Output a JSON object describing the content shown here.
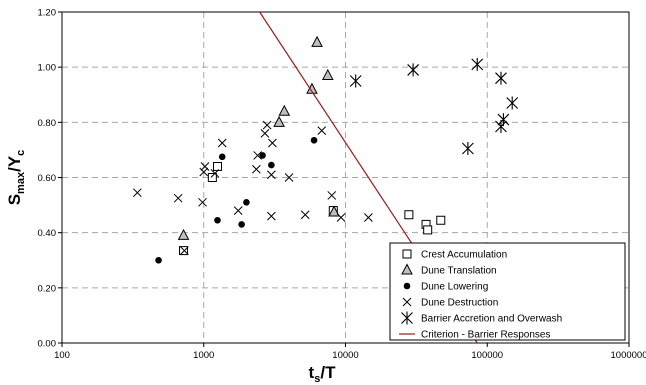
{
  "chart_data": {
    "type": "scatter",
    "xscale": "log",
    "xlim": [
      100,
      1000000
    ],
    "ylim": [
      0,
      1.2
    ],
    "grid": true,
    "legend_position": "bottom-right",
    "xlabel": {
      "main": "t",
      "sub": "s",
      "rest": "/T"
    },
    "ylabel": {
      "main": "S",
      "sub1": "max",
      "mid": "/Y",
      "sub2": "c"
    },
    "x_ticks": [
      {
        "value": 100,
        "label": "100"
      },
      {
        "value": 1000,
        "label": "1000"
      },
      {
        "value": 10000,
        "label": "10000"
      },
      {
        "value": 100000,
        "label": "100000"
      },
      {
        "value": 1000000,
        "label": "1000000"
      }
    ],
    "y_ticks": [
      {
        "value": 0,
        "label": "0.00"
      },
      {
        "value": 0.2,
        "label": "0.20"
      },
      {
        "value": 0.4,
        "label": "0.40"
      },
      {
        "value": 0.6,
        "label": "0.60"
      },
      {
        "value": 0.8,
        "label": "0.80"
      },
      {
        "value": 1.0,
        "label": "1.00"
      },
      {
        "value": 1.2,
        "label": "1.20"
      }
    ],
    "series": [
      {
        "name": "Crest Accumulation",
        "marker": "square",
        "points": [
          [
            720,
            0.335
          ],
          [
            1150,
            0.6
          ],
          [
            1250,
            0.64
          ],
          [
            8200,
            0.48
          ],
          [
            28000,
            0.465
          ],
          [
            37000,
            0.43
          ],
          [
            38000,
            0.41
          ],
          [
            47000,
            0.445
          ]
        ]
      },
      {
        "name": "Dune Translation",
        "marker": "triangle",
        "points": [
          [
            720,
            0.39
          ],
          [
            3400,
            0.8
          ],
          [
            3700,
            0.84
          ],
          [
            5800,
            0.92
          ],
          [
            6300,
            1.09
          ],
          [
            7500,
            0.97
          ],
          [
            8300,
            0.475
          ]
        ]
      },
      {
        "name": "Dune Lowering",
        "marker": "circle",
        "points": [
          [
            480,
            0.3
          ],
          [
            1250,
            0.445
          ],
          [
            1350,
            0.675
          ],
          [
            1850,
            0.43
          ],
          [
            2000,
            0.51
          ],
          [
            2600,
            0.68
          ],
          [
            3000,
            0.645
          ],
          [
            6000,
            0.735
          ]
        ]
      },
      {
        "name": "Dune Destruction",
        "marker": "x",
        "points": [
          [
            340,
            0.545
          ],
          [
            660,
            0.525
          ],
          [
            730,
            0.335
          ],
          [
            980,
            0.51
          ],
          [
            1000,
            0.62
          ],
          [
            1020,
            0.64
          ],
          [
            1200,
            0.615
          ],
          [
            1350,
            0.725
          ],
          [
            1750,
            0.48
          ],
          [
            2350,
            0.63
          ],
          [
            2400,
            0.68
          ],
          [
            2700,
            0.76
          ],
          [
            2800,
            0.79
          ],
          [
            3050,
            0.725
          ],
          [
            3000,
            0.61
          ],
          [
            3000,
            0.46
          ],
          [
            4000,
            0.6
          ],
          [
            5200,
            0.465
          ],
          [
            6800,
            0.77
          ],
          [
            8000,
            0.535
          ],
          [
            9300,
            0.455
          ],
          [
            14500,
            0.455
          ]
        ]
      },
      {
        "name": "Barrier Accretion and Overwash",
        "marker": "asterisk",
        "points": [
          [
            11800,
            0.95
          ],
          [
            30000,
            0.99
          ],
          [
            73000,
            0.705
          ],
          [
            85000,
            1.01
          ],
          [
            125000,
            0.96
          ],
          [
            125000,
            0.785
          ],
          [
            130000,
            0.81
          ],
          [
            150000,
            0.87
          ]
        ]
      },
      {
        "name": "Criterion - Barrier Responses",
        "marker": "line",
        "color": "#9b1c1c",
        "points": [
          [
            2480,
            1.2
          ],
          [
            85000,
            0
          ]
        ]
      }
    ]
  }
}
